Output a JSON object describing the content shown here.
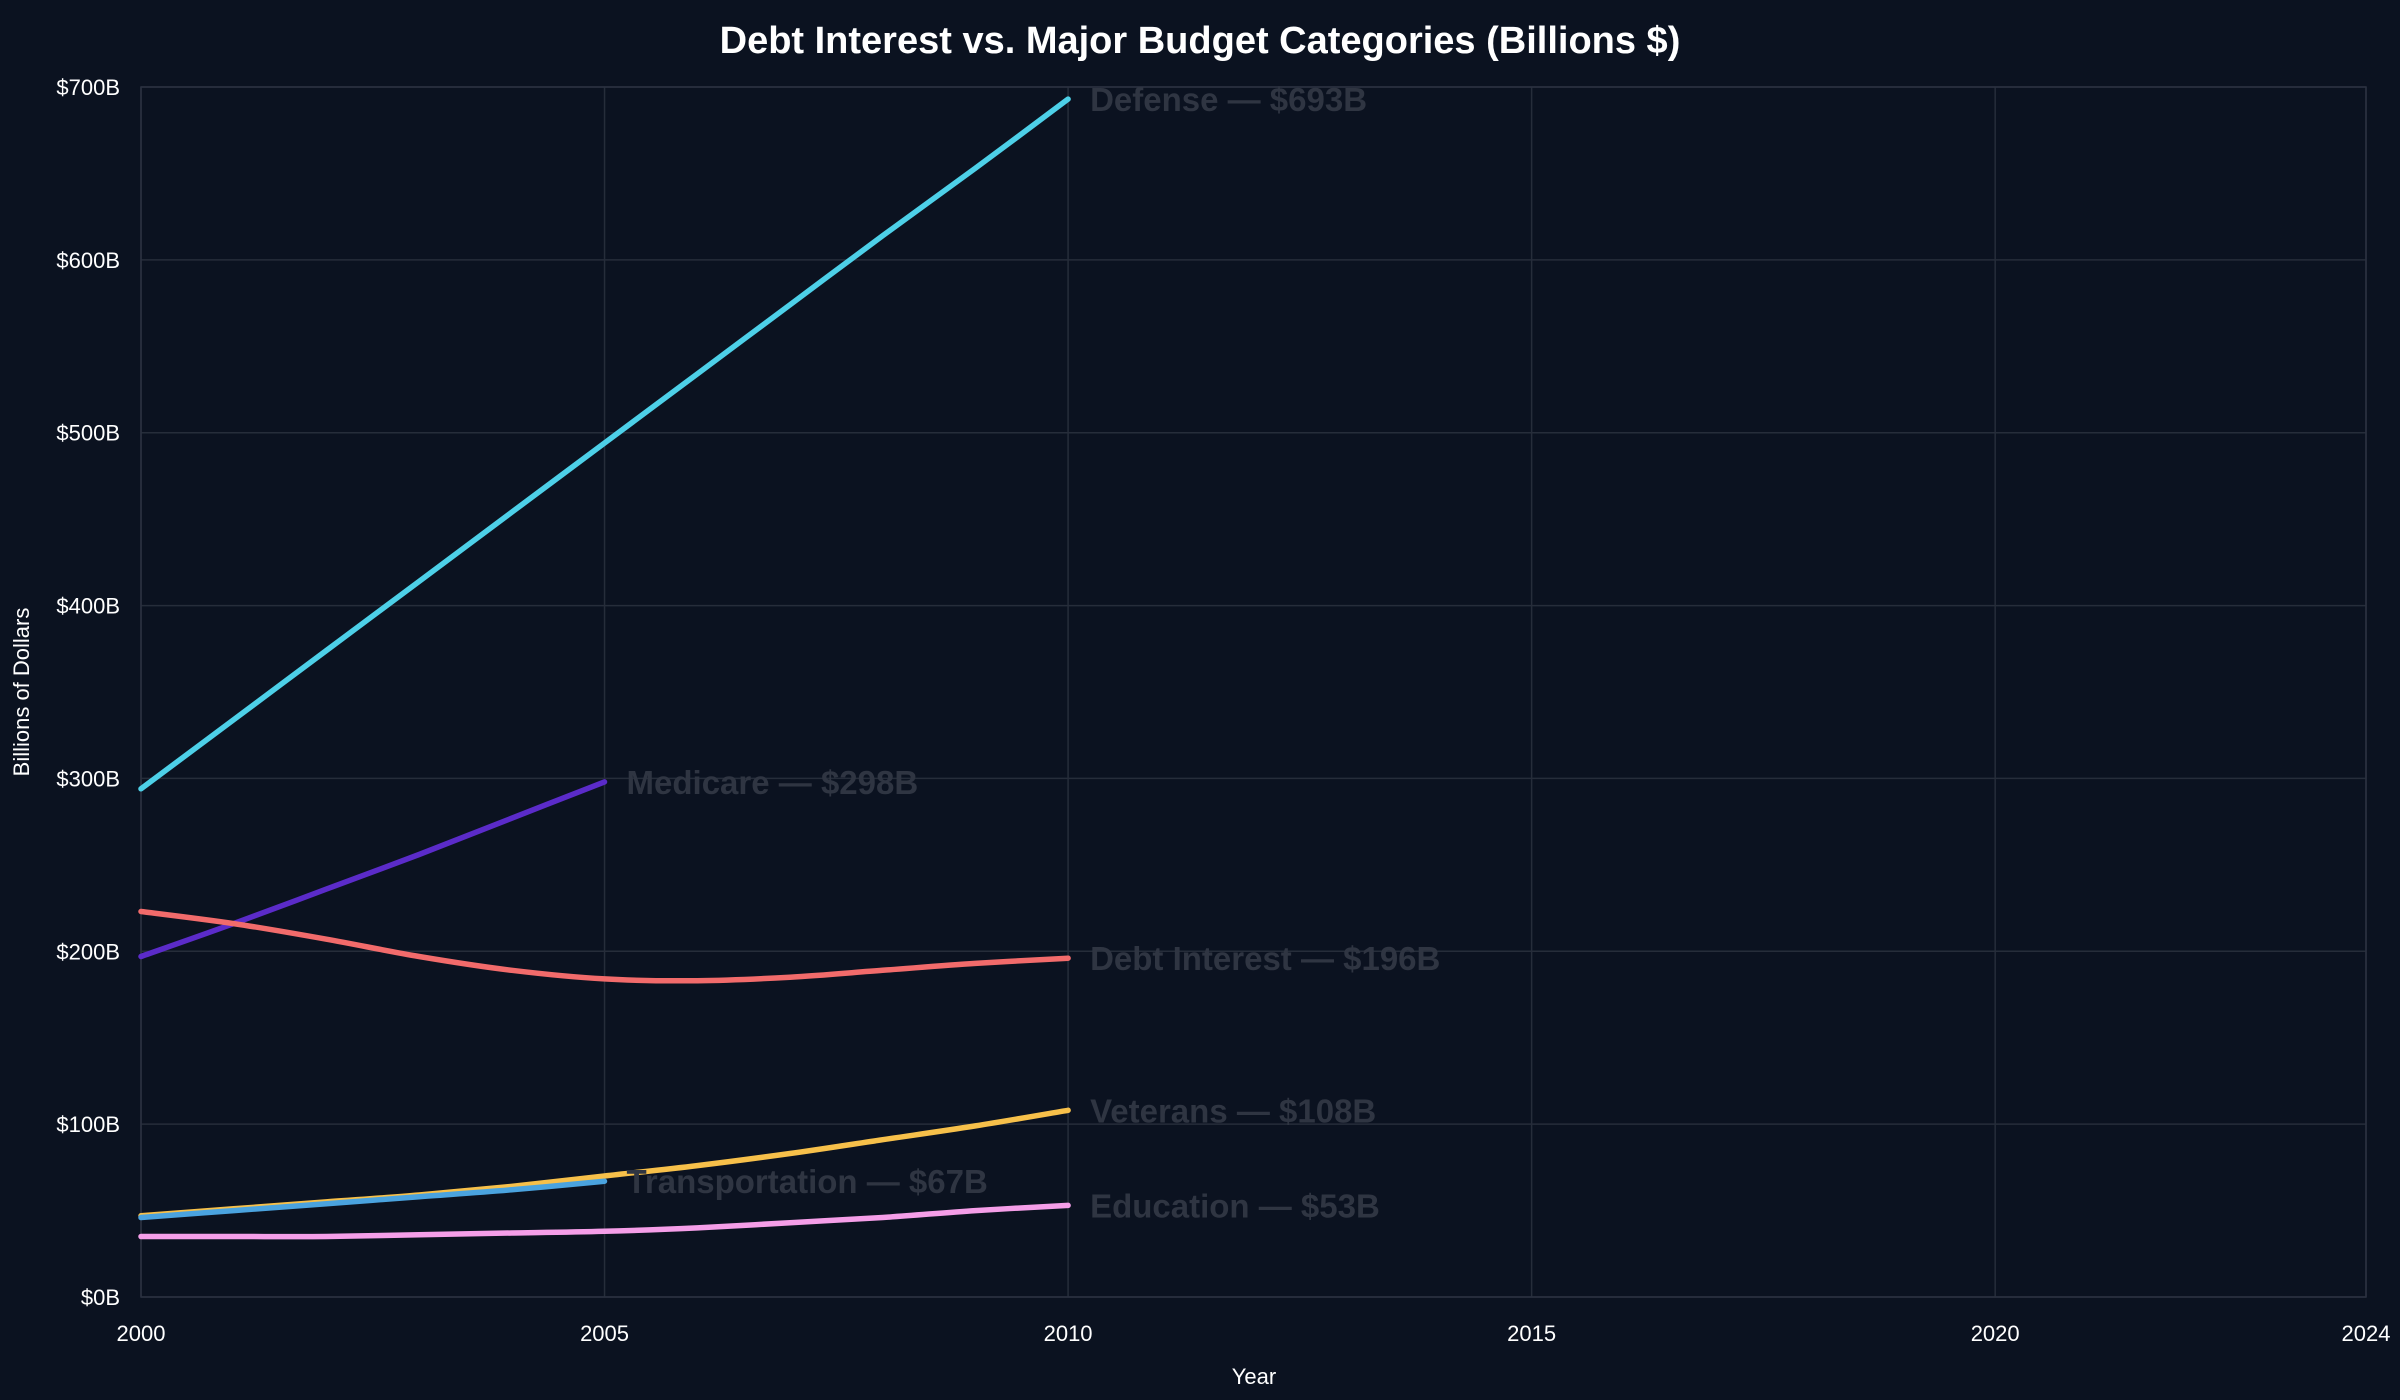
{
  "chart_data": {
    "type": "line",
    "title": "Debt Interest vs. Major Budget Categories (Billions $)",
    "xlabel": "Year",
    "ylabel": "Billions of Dollars",
    "xlim": [
      2000,
      2024
    ],
    "ylim": [
      0,
      700
    ],
    "x_ticks": [
      2000,
      2005,
      2010,
      2015,
      2020,
      2024
    ],
    "x_tick_labels": [
      "2000",
      "2005",
      "2010",
      "2015",
      "2020",
      "2024"
    ],
    "y_ticks": [
      0,
      100,
      200,
      300,
      400,
      500,
      600,
      700
    ],
    "y_tick_labels": [
      "$0B",
      "$100B",
      "$200B",
      "$300B",
      "$400B",
      "$500B",
      "$600B",
      "$700B"
    ],
    "grid": true,
    "series": [
      {
        "name": "Defense",
        "color": "#4dd0e8",
        "label": "Defense — $693B",
        "points": [
          [
            2000,
            294
          ],
          [
            2001,
            334
          ],
          [
            2002,
            374
          ],
          [
            2003,
            414
          ],
          [
            2004,
            454
          ],
          [
            2005,
            494
          ],
          [
            2006,
            534
          ],
          [
            2007,
            574
          ],
          [
            2008,
            614
          ],
          [
            2009,
            653
          ],
          [
            2010,
            693
          ]
        ]
      },
      {
        "name": "Medicare",
        "color": "#5b2bc9",
        "label": "Medicare — $298B",
        "points": [
          [
            2000,
            197
          ],
          [
            2001,
            216
          ],
          [
            2002,
            236
          ],
          [
            2003,
            256
          ],
          [
            2004,
            277
          ],
          [
            2005,
            298
          ]
        ]
      },
      {
        "name": "Debt Interest",
        "color": "#f26b6b",
        "label": "Debt Interest — $196B",
        "points": [
          [
            2000,
            223
          ],
          [
            2001,
            216
          ],
          [
            2002,
            207
          ],
          [
            2003,
            197
          ],
          [
            2004,
            189
          ],
          [
            2005,
            184
          ],
          [
            2006,
            183
          ],
          [
            2007,
            185
          ],
          [
            2008,
            189
          ],
          [
            2009,
            193
          ],
          [
            2010,
            196
          ]
        ]
      },
      {
        "name": "Veterans",
        "color": "#f7c04a",
        "label": "Veterans — $108B",
        "points": [
          [
            2000,
            47
          ],
          [
            2001,
            51
          ],
          [
            2002,
            55
          ],
          [
            2003,
            59
          ],
          [
            2004,
            64
          ],
          [
            2005,
            70
          ],
          [
            2006,
            76
          ],
          [
            2007,
            83
          ],
          [
            2008,
            91
          ],
          [
            2009,
            99
          ],
          [
            2010,
            108
          ]
        ]
      },
      {
        "name": "Transportation",
        "color": "#4aa3df",
        "label": "Transportation — $67B",
        "points": [
          [
            2000,
            46
          ],
          [
            2001,
            50
          ],
          [
            2002,
            54
          ],
          [
            2003,
            58
          ],
          [
            2004,
            62
          ],
          [
            2005,
            67
          ]
        ]
      },
      {
        "name": "Education",
        "color": "#f59ee8",
        "label": "Education — $53B",
        "points": [
          [
            2000,
            35
          ],
          [
            2001,
            35
          ],
          [
            2002,
            35
          ],
          [
            2003,
            36
          ],
          [
            2004,
            37
          ],
          [
            2005,
            38
          ],
          [
            2006,
            40
          ],
          [
            2007,
            43
          ],
          [
            2008,
            46
          ],
          [
            2009,
            50
          ],
          [
            2010,
            53
          ]
        ]
      }
    ]
  }
}
